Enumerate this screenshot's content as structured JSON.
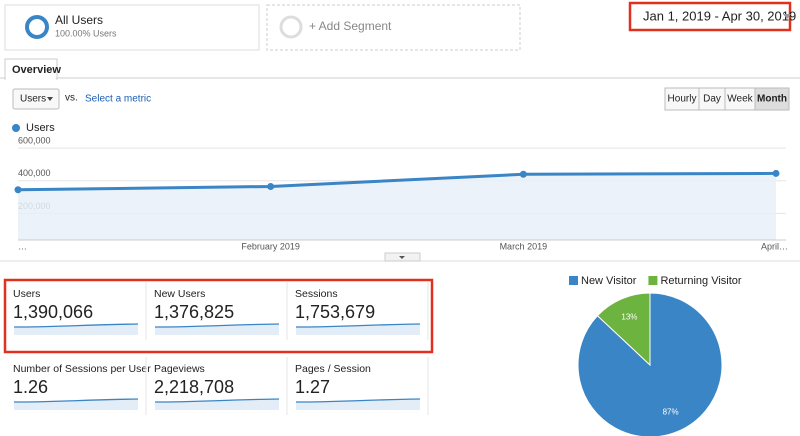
{
  "segments": [
    {
      "title": "All Users",
      "subtitle": "100.00% Users"
    },
    {
      "title": "+ Add Segment"
    }
  ],
  "date_range": "Jan 1, 2019 - Apr 30, 2019",
  "tab": "Overview",
  "toolbar": {
    "metric": "Users",
    "vs": "vs.",
    "select_metric": "Select a metric",
    "granularity": [
      "Hourly",
      "Day",
      "Week",
      "Month"
    ],
    "selected": "Month"
  },
  "line_chart": {
    "type": "line",
    "categories": [
      "…",
      "February 2019",
      "March 2019",
      "April…"
    ],
    "series": [
      {
        "name": "Users",
        "color": "#3a85c6",
        "values": [
          345000,
          365000,
          440000,
          445000
        ]
      }
    ],
    "ylim": [
      0,
      650000
    ],
    "yticks": [
      {
        "value": 200000,
        "label": "200,000"
      },
      {
        "value": 400000,
        "label": "400,000"
      },
      {
        "value": 600000,
        "label": "600,000"
      }
    ],
    "grid": true
  },
  "metrics": [
    {
      "label": "Users",
      "value": "1,390,066"
    },
    {
      "label": "New Users",
      "value": "1,376,825"
    },
    {
      "label": "Sessions",
      "value": "1,753,679"
    },
    {
      "label": "Number of Sessions per User",
      "value": "1.26"
    },
    {
      "label": "Pageviews",
      "value": "2,218,708"
    },
    {
      "label": "Pages / Session",
      "value": "1.27"
    }
  ],
  "pie_chart": {
    "type": "pie",
    "categories": [
      "New Visitor",
      "Returning Visitor"
    ],
    "values": [
      87,
      13
    ],
    "value_labels": [
      "87%",
      "13%"
    ],
    "colors": [
      "#3a85c6",
      "#6db33f"
    ]
  }
}
